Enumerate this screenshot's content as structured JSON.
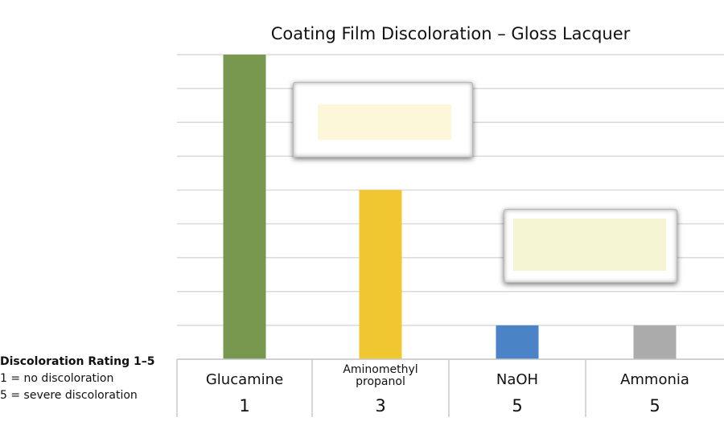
{
  "colors": {
    "Glucamine": "#77984e",
    "Aminomethyl propanol": "#f1c731",
    "NaOH": "#4a84c6",
    "Ammonia": "#ababab",
    "grid": "#d9d9d9",
    "swatch_aminomethyl": "#fbf7d8",
    "swatch_naoh": "#f5f4d3"
  },
  "legend": {
    "heading": "Discoloration Rating 1–5",
    "line1": "1 = no discoloration",
    "line2": "5 = severe discoloration"
  },
  "chart_data": {
    "type": "bar",
    "title": "Coating Film Discoloration – Gloss Lacquer",
    "categories": [
      "Glucamine",
      "Aminomethyl propanol",
      "NaOH",
      "Ammonia"
    ],
    "category_labels": [
      {
        "line1": "Glucamine",
        "line2": ""
      },
      {
        "line1": "Aminomethyl",
        "line2": "propanol"
      },
      {
        "line1": "NaOH",
        "line2": ""
      },
      {
        "line1": "Ammonia",
        "line2": ""
      }
    ],
    "ratings": [
      "1",
      "3",
      "5",
      "5"
    ],
    "values": [
      9,
      5,
      1,
      1
    ],
    "ylim": [
      0,
      9
    ],
    "grid": true,
    "xlabel": "",
    "ylabel": ""
  }
}
